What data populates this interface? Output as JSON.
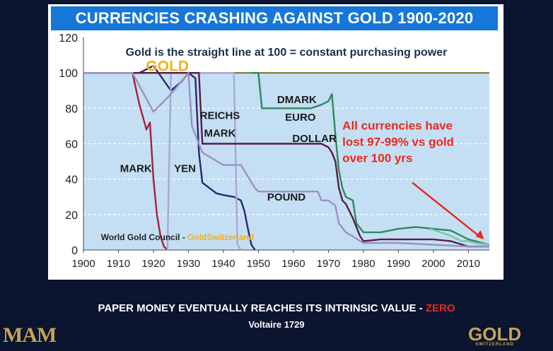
{
  "title": "CURRENCIES CRASHING AGAINST GOLD 1900-2020",
  "caption_main_prefix": "PAPER MONEY EVENTUALLY REACHES ITS INTRINSIC VALUE - ",
  "caption_main_emphasis": "ZERO",
  "caption_sub": "Voltaire 1729",
  "logo_left_text": "MAM",
  "logo_right_text": "GOLD",
  "logo_right_small": "SWITZERLAND",
  "colors": {
    "plot_bg": "#c4dff3",
    "gold_line": "#7a7a2a",
    "gold_label": "#f0b21a",
    "title_bar": "#1677d8",
    "annotation": "#e8291c",
    "text_dark": "#1a2f4e"
  },
  "chart_data": {
    "type": "line",
    "subtitle": "Gold is the straight line at 100 = constant purchasing power",
    "xlabel": "",
    "ylabel": "",
    "xlim": [
      1900,
      2016
    ],
    "ylim": [
      0,
      120
    ],
    "x_ticks": [
      1900,
      1910,
      1920,
      1930,
      1940,
      1950,
      1960,
      1970,
      1980,
      1990,
      2000,
      2010
    ],
    "y_ticks": [
      0,
      20,
      40,
      60,
      80,
      100,
      120
    ],
    "grid": "horizontal",
    "source": "World Gold Council - ",
    "source_emphasis": "GoldSwitzerland",
    "annotation": [
      "All currencies have",
      "lost 97-99% vs gold",
      "over 100 yrs"
    ],
    "series": [
      {
        "name": "GOLD",
        "color": "#7a7a2a",
        "x": [
          1900,
          2016
        ],
        "y": [
          100,
          100
        ]
      },
      {
        "name": "MARK",
        "color": "#a8203a",
        "x": [
          1900,
          1914,
          1916,
          1918,
          1919,
          1920,
          1921,
          1922,
          1923,
          1924
        ],
        "y": [
          100,
          100,
          82,
          68,
          72,
          40,
          20,
          8,
          2,
          0
        ]
      },
      {
        "name": "YEN",
        "color": "#2a2770",
        "x": [
          1900,
          1916,
          1920,
          1925,
          1928,
          1930,
          1932,
          1933,
          1934,
          1936,
          1938,
          1940,
          1943,
          1945,
          1946,
          1947,
          1948,
          1949
        ],
        "y": [
          100,
          100,
          104,
          90,
          95,
          100,
          97,
          55,
          38,
          35,
          32,
          31,
          30,
          28,
          22,
          12,
          3,
          0
        ]
      },
      {
        "name": "REICHS MARK",
        "color": "#a8a6d6",
        "x": [
          1924,
          1925,
          1929,
          1933,
          1938,
          1939,
          1940,
          1942,
          1943,
          1944,
          1945
        ],
        "y": [
          0,
          100,
          100,
          100,
          100,
          100,
          100,
          100,
          100,
          3,
          0
        ]
      },
      {
        "name": "DMARK",
        "color": "#2d8a5a",
        "x": [
          1948,
          1950,
          1951,
          1955,
          1960,
          1965,
          1968,
          1970,
          1971,
          1972,
          1973,
          1974,
          1975,
          1977,
          1978,
          1980,
          1985,
          1990,
          1995,
          2000,
          2005,
          2010,
          2016
        ],
        "y": [
          100,
          100,
          80,
          80,
          80,
          80,
          82,
          84,
          88,
          65,
          45,
          35,
          30,
          28,
          15,
          10,
          10,
          12,
          13,
          12,
          11,
          6,
          3
        ]
      },
      {
        "name": "DOLLAR",
        "color": "#5a1c45",
        "x": [
          1900,
          1930,
          1933,
          1934,
          1940,
          1950,
          1960,
          1968,
          1970,
          1971,
          1972,
          1973,
          1974,
          1975,
          1977,
          1979,
          1980,
          1985,
          1990,
          1995,
          2000,
          2005,
          2010,
          2016
        ],
        "y": [
          100,
          100,
          100,
          60,
          60,
          60,
          60,
          60,
          58,
          55,
          50,
          35,
          28,
          26,
          18,
          8,
          5,
          6,
          6,
          6,
          6,
          5,
          2,
          2
        ]
      },
      {
        "name": "POUND",
        "color": "#9d8fc4",
        "x": [
          1900,
          1913,
          1914,
          1920,
          1925,
          1930,
          1931,
          1934,
          1940,
          1945,
          1949,
          1950,
          1960,
          1967,
          1968,
          1970,
          1972,
          1973,
          1975,
          1980,
          1985,
          1990,
          2000,
          2010,
          2016
        ],
        "y": [
          100,
          100,
          100,
          78,
          88,
          100,
          70,
          55,
          48,
          48,
          35,
          33,
          33,
          33,
          28,
          28,
          25,
          15,
          10,
          4,
          4,
          4,
          3,
          2,
          2
        ]
      },
      {
        "name": "EURO",
        "color": "#7cc4b0",
        "x": [
          1999,
          2002,
          2005,
          2008,
          2010,
          2012,
          2016
        ],
        "y": [
          12,
          10,
          8,
          5,
          5,
          4,
          3
        ]
      }
    ],
    "labels": [
      {
        "text": "GOLD",
        "series": "GOLD"
      },
      {
        "text": "DMARK",
        "series": "DMARK"
      },
      {
        "text": "EURO",
        "series": "EURO"
      },
      {
        "text": "DOLLAR",
        "series": "DOLLAR"
      },
      {
        "text": "REICHS",
        "series": "REICHS MARK"
      },
      {
        "text": "MARK",
        "series": "REICHS MARK"
      },
      {
        "text": "MARK",
        "series": "MARK"
      },
      {
        "text": "YEN",
        "series": "YEN"
      },
      {
        "text": "POUND",
        "series": "POUND"
      }
    ]
  }
}
